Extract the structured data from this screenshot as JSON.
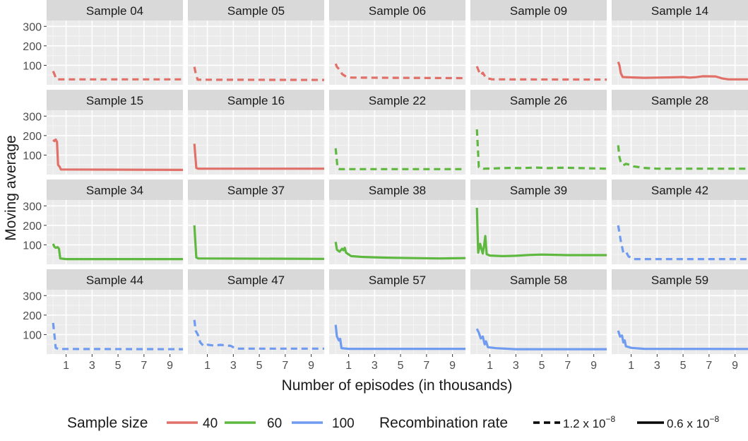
{
  "chart_data": {
    "type": "line",
    "layout": "facet-grid",
    "ylabel": "Moving average",
    "xlabel": "Number of episodes (in thousands)",
    "x_ticks": [
      1,
      3,
      5,
      7,
      9
    ],
    "y_ticks": [
      100,
      200,
      300
    ],
    "xlim": [
      -0.5,
      10
    ],
    "ylim": [
      0,
      330
    ],
    "colors": {
      "40": "#E07068",
      "60": "#5FB840",
      "100": "#6F9BF0"
    },
    "legend": {
      "sample_size_title": "Sample size",
      "sample_sizes": [
        "40",
        "60",
        "100"
      ],
      "recombination_title": "Recombination rate",
      "rates": [
        {
          "label": "1.2 x 10",
          "exp": "−8",
          "style": "dashed"
        },
        {
          "label": "0.6 x 10",
          "exp": "−8",
          "style": "solid"
        }
      ]
    },
    "panels": [
      {
        "title": "Sample 04",
        "size": "40",
        "style": "dashed",
        "points": [
          [
            0,
            70
          ],
          [
            0.1,
            55
          ],
          [
            0.25,
            28
          ],
          [
            10,
            28
          ]
        ]
      },
      {
        "title": "Sample 05",
        "size": "40",
        "style": "dashed",
        "points": [
          [
            0,
            92
          ],
          [
            0.1,
            60
          ],
          [
            0.25,
            26
          ],
          [
            10,
            25
          ]
        ]
      },
      {
        "title": "Sample 06",
        "size": "40",
        "style": "dashed",
        "points": [
          [
            0,
            108
          ],
          [
            0.1,
            92
          ],
          [
            0.3,
            78
          ],
          [
            0.5,
            55
          ],
          [
            0.8,
            42
          ],
          [
            1.2,
            37
          ],
          [
            10,
            34
          ]
        ]
      },
      {
        "title": "Sample 09",
        "size": "40",
        "style": "dashed",
        "points": [
          [
            0,
            95
          ],
          [
            0.15,
            70
          ],
          [
            0.3,
            50
          ],
          [
            0.45,
            62
          ],
          [
            0.7,
            35
          ],
          [
            1.2,
            28
          ],
          [
            10,
            27
          ]
        ]
      },
      {
        "title": "Sample 14",
        "size": "40",
        "style": "solid",
        "points": [
          [
            0,
            118
          ],
          [
            0.1,
            100
          ],
          [
            0.2,
            60
          ],
          [
            0.35,
            40
          ],
          [
            1,
            38
          ],
          [
            2,
            36
          ],
          [
            3,
            37
          ],
          [
            4,
            38
          ],
          [
            5,
            40
          ],
          [
            5.5,
            37
          ],
          [
            6,
            39
          ],
          [
            6.5,
            44
          ],
          [
            7.5,
            43
          ],
          [
            8,
            33
          ],
          [
            8.5,
            28
          ],
          [
            10,
            28
          ]
        ]
      },
      {
        "title": "Sample 15",
        "size": "40",
        "style": "solid",
        "points": [
          [
            0,
            178
          ],
          [
            0.1,
            172
          ],
          [
            0.2,
            180
          ],
          [
            0.3,
            168
          ],
          [
            0.38,
            50
          ],
          [
            0.5,
            40
          ],
          [
            0.6,
            26
          ],
          [
            10,
            24
          ]
        ]
      },
      {
        "title": "Sample 16",
        "size": "40",
        "style": "solid",
        "points": [
          [
            0,
            158
          ],
          [
            0.15,
            34
          ],
          [
            0.3,
            30
          ],
          [
            10,
            30
          ]
        ]
      },
      {
        "title": "Sample 22",
        "size": "60",
        "style": "dashed",
        "points": [
          [
            0,
            135
          ],
          [
            0.15,
            33
          ],
          [
            0.3,
            28
          ],
          [
            10,
            28
          ]
        ]
      },
      {
        "title": "Sample 26",
        "size": "60",
        "style": "dashed",
        "points": [
          [
            0,
            232
          ],
          [
            0.15,
            38
          ],
          [
            0.5,
            30
          ],
          [
            1.5,
            32
          ],
          [
            2.5,
            34
          ],
          [
            3.5,
            33
          ],
          [
            4.5,
            36
          ],
          [
            5.5,
            33
          ],
          [
            6.5,
            35
          ],
          [
            7.5,
            34
          ],
          [
            10,
            30
          ]
        ]
      },
      {
        "title": "Sample 28",
        "size": "60",
        "style": "dashed",
        "points": [
          [
            0,
            150
          ],
          [
            0.1,
            90
          ],
          [
            0.2,
            62
          ],
          [
            0.4,
            48
          ],
          [
            0.6,
            55
          ],
          [
            0.9,
            50
          ],
          [
            1.2,
            42
          ],
          [
            2,
            34
          ],
          [
            3,
            30
          ],
          [
            10,
            30
          ]
        ]
      },
      {
        "title": "Sample 34",
        "size": "60",
        "style": "solid",
        "points": [
          [
            0,
            105
          ],
          [
            0.1,
            90
          ],
          [
            0.2,
            85
          ],
          [
            0.35,
            88
          ],
          [
            0.45,
            80
          ],
          [
            0.55,
            30
          ],
          [
            1,
            27
          ],
          [
            10,
            27
          ]
        ]
      },
      {
        "title": "Sample 37",
        "size": "60",
        "style": "solid",
        "points": [
          [
            0,
            200
          ],
          [
            0.15,
            35
          ],
          [
            0.3,
            30
          ],
          [
            10,
            28
          ]
        ]
      },
      {
        "title": "Sample 38",
        "size": "60",
        "style": "solid",
        "points": [
          [
            0,
            115
          ],
          [
            0.1,
            75
          ],
          [
            0.3,
            65
          ],
          [
            0.5,
            80
          ],
          [
            0.6,
            72
          ],
          [
            0.7,
            85
          ],
          [
            0.8,
            60
          ],
          [
            1.2,
            42
          ],
          [
            2,
            38
          ],
          [
            3,
            36
          ],
          [
            4,
            34
          ],
          [
            6,
            32
          ],
          [
            8,
            30
          ],
          [
            10,
            32
          ]
        ]
      },
      {
        "title": "Sample 39",
        "size": "60",
        "style": "solid",
        "points": [
          [
            0,
            290
          ],
          [
            0.1,
            60
          ],
          [
            0.25,
            105
          ],
          [
            0.35,
            80
          ],
          [
            0.45,
            55
          ],
          [
            0.55,
            95
          ],
          [
            0.65,
            145
          ],
          [
            0.75,
            52
          ],
          [
            1,
            45
          ],
          [
            2,
            42
          ],
          [
            3,
            44
          ],
          [
            4,
            48
          ],
          [
            5,
            50
          ],
          [
            7,
            47
          ],
          [
            10,
            47
          ]
        ]
      },
      {
        "title": "Sample 42",
        "size": "100",
        "style": "dashed",
        "points": [
          [
            0,
            200
          ],
          [
            0.2,
            120
          ],
          [
            0.4,
            60
          ],
          [
            0.6,
            65
          ],
          [
            0.8,
            40
          ],
          [
            1,
            35
          ],
          [
            1.2,
            27
          ],
          [
            10,
            27
          ]
        ]
      },
      {
        "title": "Sample 44",
        "size": "100",
        "style": "dashed",
        "points": [
          [
            0,
            160
          ],
          [
            0.1,
            100
          ],
          [
            0.2,
            32
          ],
          [
            0.4,
            26
          ],
          [
            10,
            25
          ]
        ]
      },
      {
        "title": "Sample 47",
        "size": "100",
        "style": "dashed",
        "points": [
          [
            0,
            175
          ],
          [
            0.1,
            120
          ],
          [
            0.3,
            95
          ],
          [
            0.45,
            60
          ],
          [
            0.7,
            42
          ],
          [
            1,
            48
          ],
          [
            1.5,
            44
          ],
          [
            2,
            47
          ],
          [
            2.8,
            42
          ],
          [
            3.2,
            28
          ],
          [
            10,
            28
          ]
        ]
      },
      {
        "title": "Sample 57",
        "size": "100",
        "style": "solid",
        "points": [
          [
            0,
            150
          ],
          [
            0.1,
            90
          ],
          [
            0.25,
            70
          ],
          [
            0.35,
            78
          ],
          [
            0.45,
            30
          ],
          [
            1,
            27
          ],
          [
            10,
            27
          ]
        ]
      },
      {
        "title": "Sample 58",
        "size": "100",
        "style": "solid",
        "points": [
          [
            0,
            130
          ],
          [
            0.15,
            110
          ],
          [
            0.3,
            80
          ],
          [
            0.45,
            90
          ],
          [
            0.6,
            50
          ],
          [
            0.7,
            65
          ],
          [
            0.85,
            35
          ],
          [
            1.5,
            30
          ],
          [
            3,
            25
          ],
          [
            10,
            25
          ]
        ]
      },
      {
        "title": "Sample 59",
        "size": "100",
        "style": "solid",
        "points": [
          [
            0,
            120
          ],
          [
            0.15,
            90
          ],
          [
            0.3,
            95
          ],
          [
            0.4,
            60
          ],
          [
            0.5,
            70
          ],
          [
            0.6,
            40
          ],
          [
            1,
            32
          ],
          [
            2,
            27
          ],
          [
            10,
            26
          ]
        ]
      }
    ]
  }
}
